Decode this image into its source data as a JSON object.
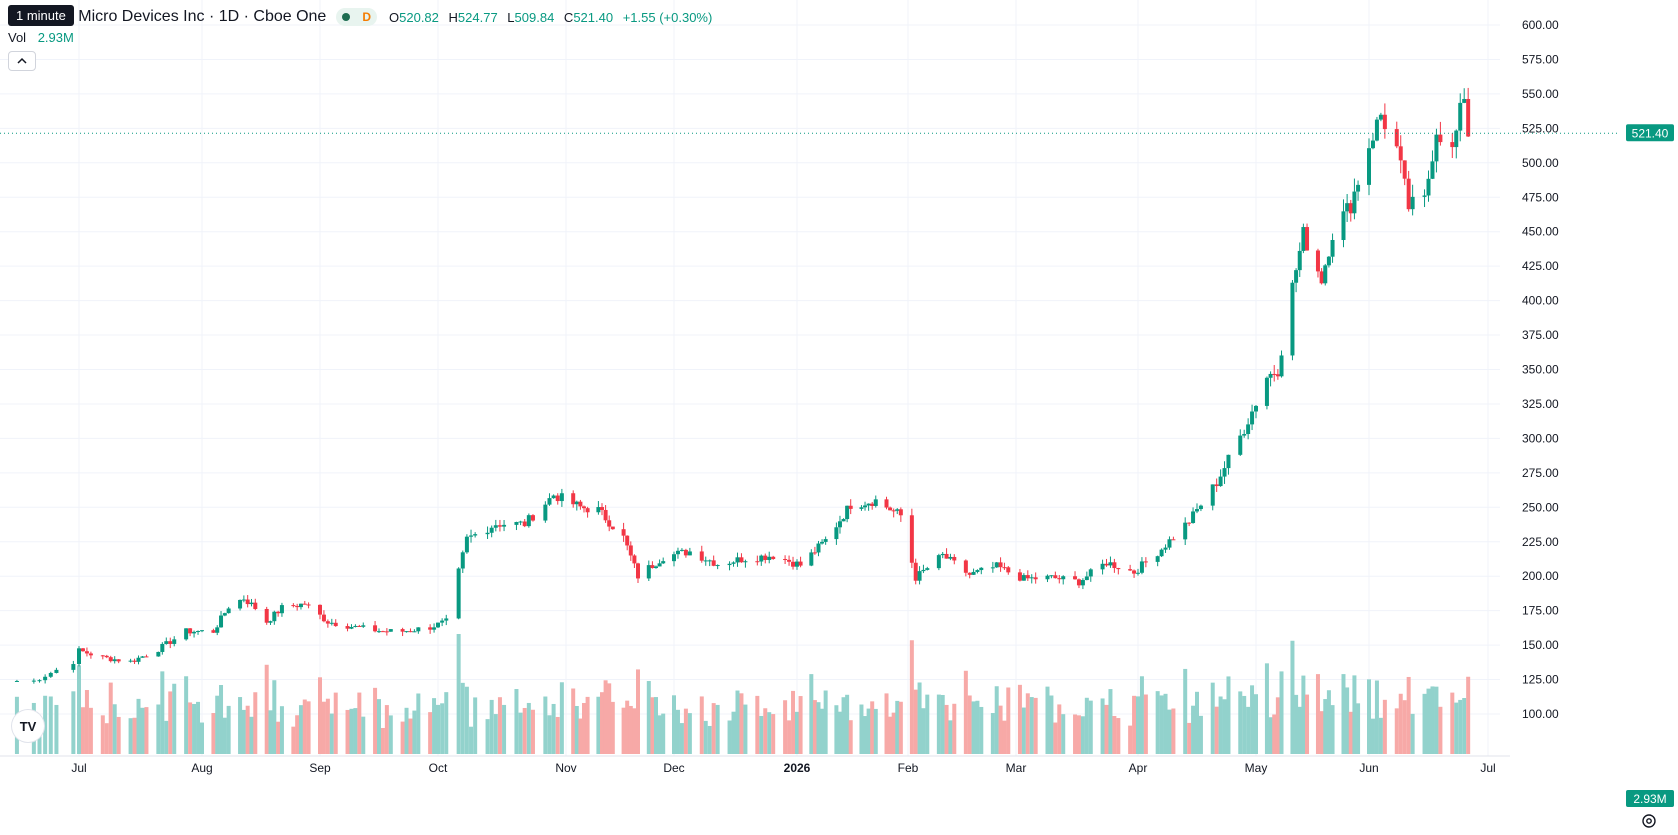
{
  "header": {
    "tooltip": "1 minute",
    "title": "ced Micro Devices Inc · 1D · Cboe One",
    "interval_badge": "D",
    "ohlc": {
      "o_label": "O",
      "o": "520.82",
      "h_label": "H",
      "h": "524.77",
      "l_label": "L",
      "l": "509.84",
      "c_label": "C",
      "c": "521.40",
      "change": "+1.55 (+0.30%)"
    },
    "volume": {
      "label": "Vol",
      "value": "2.93M"
    }
  },
  "colors": {
    "up": "#089981",
    "down": "#f23645",
    "up_vol": "#92d2cc",
    "down_vol": "#f7a9a7",
    "grid": "#f0f3fa"
  },
  "logo": {
    "text": "TV"
  },
  "chart_data": {
    "type": "candlestick",
    "y_ticks": [
      "600.00",
      "575.00",
      "550.00",
      "525.00",
      "500.00",
      "475.00",
      "450.00",
      "425.00",
      "400.00",
      "375.00",
      "350.00",
      "325.00",
      "300.00",
      "275.00",
      "250.00",
      "225.00",
      "200.00",
      "175.00",
      "150.00",
      "125.00",
      "100.00"
    ],
    "x_ticks": [
      "Jul",
      "Aug",
      "Sep",
      "Oct",
      "Nov",
      "Dec",
      "2026",
      "Feb",
      "Mar",
      "Apr",
      "May",
      "Jun",
      "Jul"
    ],
    "price_label": "521.40",
    "volume_label": "2.93M",
    "ylim": [
      100,
      600
    ],
    "volume_unit": "M",
    "close_series": [
      {
        "date": "2025-06-23",
        "value": 124
      },
      {
        "date": "2025-06-30",
        "value": 138
      },
      {
        "date": "2025-07-01",
        "value": 146
      },
      {
        "date": "2025-07-07",
        "value": 141
      },
      {
        "date": "2025-07-14",
        "value": 138
      },
      {
        "date": "2025-07-21",
        "value": 147
      },
      {
        "date": "2025-07-28",
        "value": 160
      },
      {
        "date": "2025-08-04",
        "value": 160
      },
      {
        "date": "2025-08-08",
        "value": 178
      },
      {
        "date": "2025-08-12",
        "value": 184
      },
      {
        "date": "2025-08-15",
        "value": 177
      },
      {
        "date": "2025-08-18",
        "value": 167
      },
      {
        "date": "2025-08-22",
        "value": 177
      },
      {
        "date": "2025-08-28",
        "value": 180
      },
      {
        "date": "2025-09-03",
        "value": 167
      },
      {
        "date": "2025-09-10",
        "value": 163
      },
      {
        "date": "2025-09-17",
        "value": 160
      },
      {
        "date": "2025-09-22",
        "value": 160
      },
      {
        "date": "2025-09-29",
        "value": 163
      },
      {
        "date": "2025-10-03",
        "value": 167
      },
      {
        "date": "2025-10-06",
        "value": 203
      },
      {
        "date": "2025-10-08",
        "value": 227
      },
      {
        "date": "2025-10-15",
        "value": 238
      },
      {
        "date": "2025-10-22",
        "value": 238
      },
      {
        "date": "2025-10-29",
        "value": 259
      },
      {
        "date": "2025-11-05",
        "value": 250
      },
      {
        "date": "2025-11-10",
        "value": 248
      },
      {
        "date": "2025-11-17",
        "value": 228
      },
      {
        "date": "2025-11-21",
        "value": 200
      },
      {
        "date": "2025-11-28",
        "value": 214
      },
      {
        "date": "2025-12-05",
        "value": 218
      },
      {
        "date": "2025-12-12",
        "value": 209
      },
      {
        "date": "2025-12-19",
        "value": 213
      },
      {
        "date": "2025-12-26",
        "value": 215
      },
      {
        "date": "2026-01-02",
        "value": 208
      },
      {
        "date": "2026-01-09",
        "value": 226
      },
      {
        "date": "2026-01-16",
        "value": 252
      },
      {
        "date": "2026-01-23",
        "value": 255
      },
      {
        "date": "2026-01-30",
        "value": 244
      },
      {
        "date": "2026-02-03",
        "value": 199
      },
      {
        "date": "2026-02-10",
        "value": 215
      },
      {
        "date": "2026-02-17",
        "value": 201
      },
      {
        "date": "2026-02-24",
        "value": 207
      },
      {
        "date": "2026-03-03",
        "value": 198
      },
      {
        "date": "2026-03-10",
        "value": 199
      },
      {
        "date": "2026-03-17",
        "value": 196
      },
      {
        "date": "2026-03-24",
        "value": 210
      },
      {
        "date": "2026-03-31",
        "value": 203
      },
      {
        "date": "2026-04-07",
        "value": 220
      },
      {
        "date": "2026-04-14",
        "value": 240
      },
      {
        "date": "2026-04-21",
        "value": 268
      },
      {
        "date": "2026-04-28",
        "value": 307
      },
      {
        "date": "2026-05-04",
        "value": 345
      },
      {
        "date": "2026-05-07",
        "value": 350
      },
      {
        "date": "2026-05-11",
        "value": 410
      },
      {
        "date": "2026-05-14",
        "value": 448
      },
      {
        "date": "2026-05-19",
        "value": 416
      },
      {
        "date": "2026-05-22",
        "value": 449
      },
      {
        "date": "2026-05-27",
        "value": 470
      },
      {
        "date": "2026-06-01",
        "value": 513
      },
      {
        "date": "2026-06-04",
        "value": 535
      },
      {
        "date": "2026-06-08",
        "value": 510
      },
      {
        "date": "2026-06-11",
        "value": 468
      },
      {
        "date": "2026-06-15",
        "value": 472
      },
      {
        "date": "2026-06-18",
        "value": 525
      },
      {
        "date": "2026-06-22",
        "value": 508
      },
      {
        "date": "2026-06-25",
        "value": 550
      },
      {
        "date": "2026-06-26",
        "value": 521.4
      }
    ]
  }
}
